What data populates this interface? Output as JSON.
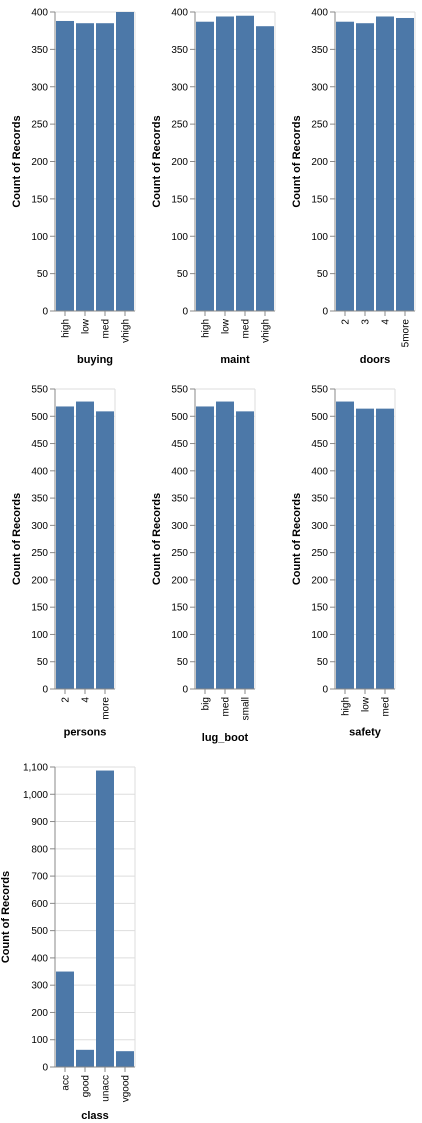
{
  "bar_color": "#4c78a8",
  "chart_data": [
    {
      "type": "bar",
      "xlabel": "buying",
      "ylabel": "Count of Records",
      "categories": [
        "high",
        "low",
        "med",
        "vhigh"
      ],
      "values": [
        388,
        385,
        385,
        400
      ],
      "ylim": [
        0,
        400
      ],
      "yticks": [
        "0",
        "50",
        "100",
        "150",
        "200",
        "250",
        "300",
        "350",
        "400"
      ],
      "grid": true
    },
    {
      "type": "bar",
      "xlabel": "maint",
      "ylabel": "Count of Records",
      "categories": [
        "high",
        "low",
        "med",
        "vhigh"
      ],
      "values": [
        387,
        394,
        395,
        381
      ],
      "ylim": [
        0,
        400
      ],
      "yticks": [
        "0",
        "50",
        "100",
        "150",
        "200",
        "250",
        "300",
        "350",
        "400"
      ],
      "grid": true
    },
    {
      "type": "bar",
      "xlabel": "doors",
      "ylabel": "Count of Records",
      "categories": [
        "2",
        "3",
        "4",
        "5more"
      ],
      "values": [
        387,
        385,
        394,
        392
      ],
      "ylim": [
        0,
        400
      ],
      "yticks": [
        "0",
        "50",
        "100",
        "150",
        "200",
        "250",
        "300",
        "350",
        "400"
      ],
      "grid": true
    },
    {
      "type": "bar",
      "xlabel": "persons",
      "ylabel": "Count of Records",
      "categories": [
        "2",
        "4",
        "more"
      ],
      "values": [
        518,
        527,
        509
      ],
      "ylim": [
        0,
        550
      ],
      "yticks": [
        "0",
        "50",
        "100",
        "150",
        "200",
        "250",
        "300",
        "350",
        "400",
        "450",
        "500",
        "550"
      ],
      "grid": true
    },
    {
      "type": "bar",
      "xlabel": "lug_boot",
      "ylabel": "Count of Records",
      "categories": [
        "big",
        "med",
        "small"
      ],
      "values": [
        518,
        527,
        509
      ],
      "ylim": [
        0,
        550
      ],
      "yticks": [
        "0",
        "50",
        "100",
        "150",
        "200",
        "250",
        "300",
        "350",
        "400",
        "450",
        "500",
        "550"
      ],
      "grid": true
    },
    {
      "type": "bar",
      "xlabel": "safety",
      "ylabel": "Count of Records",
      "categories": [
        "high",
        "low",
        "med"
      ],
      "values": [
        527,
        514,
        514
      ],
      "ylim": [
        0,
        550
      ],
      "yticks": [
        "0",
        "50",
        "100",
        "150",
        "200",
        "250",
        "300",
        "350",
        "400",
        "450",
        "500",
        "550"
      ],
      "grid": true
    },
    {
      "type": "bar",
      "xlabel": "class",
      "ylabel": "Count of Records",
      "categories": [
        "acc",
        "good",
        "unacc",
        "vgood"
      ],
      "values": [
        350,
        63,
        1087,
        58
      ],
      "ylim": [
        0,
        1100
      ],
      "yticks": [
        "0",
        "100",
        "200",
        "300",
        "400",
        "500",
        "600",
        "700",
        "800",
        "900",
        "1,000",
        "1,100"
      ],
      "grid": true
    }
  ]
}
